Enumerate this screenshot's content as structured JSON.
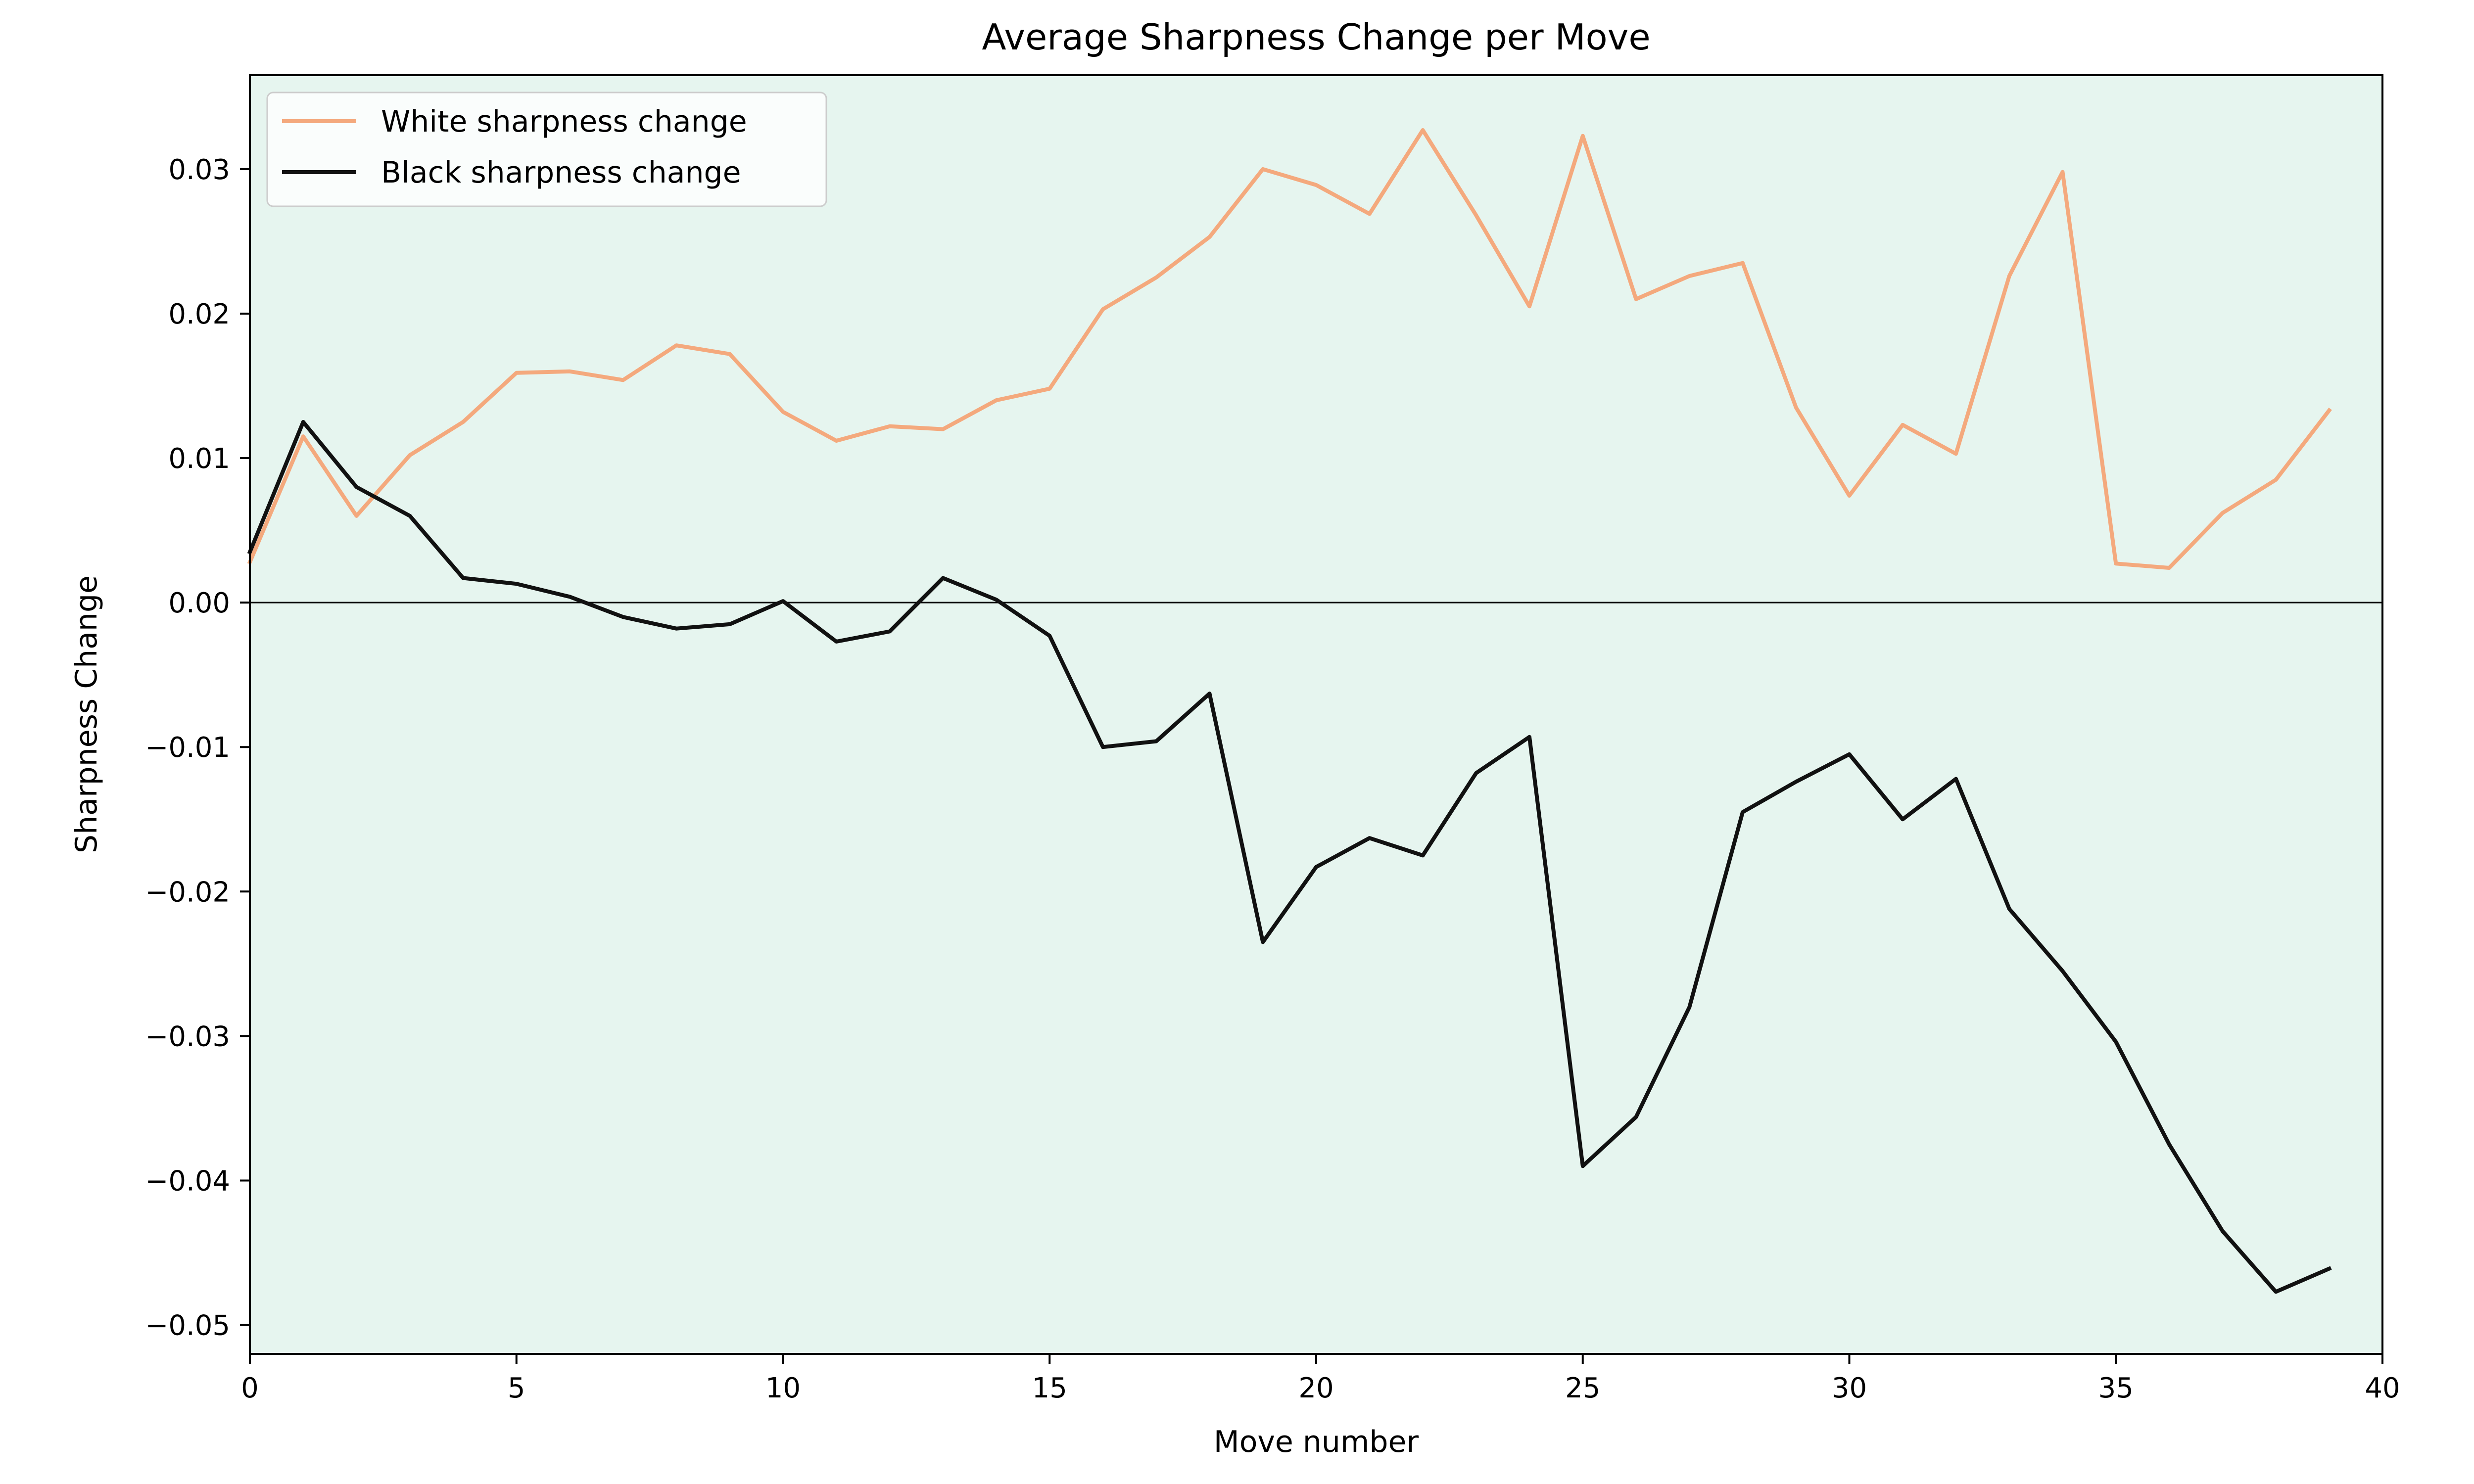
{
  "chart_data": {
    "type": "line",
    "title": "Average Sharpness Change per Move",
    "xlabel": "Move number",
    "ylabel": "Sharpness Change",
    "xlim": [
      0,
      40
    ],
    "ylim": [
      -0.052,
      0.0365
    ],
    "xticks": [
      0,
      5,
      10,
      15,
      20,
      25,
      30,
      35,
      40
    ],
    "yticks": [
      -0.05,
      -0.04,
      -0.03,
      -0.02,
      -0.01,
      0.0,
      0.01,
      0.02,
      0.03
    ],
    "ytick_labels": [
      "−0.05",
      "−0.04",
      "−0.03",
      "−0.02",
      "−0.01",
      "0.00",
      "0.01",
      "0.02",
      "0.03"
    ],
    "xtick_labels": [
      "0",
      "5",
      "10",
      "15",
      "20",
      "25",
      "30",
      "35",
      "40"
    ],
    "zero_line": true,
    "grid": false,
    "legend_position": "top-left",
    "background_color": "#e6f5ef",
    "x": [
      0,
      1,
      2,
      3,
      4,
      5,
      6,
      7,
      8,
      9,
      10,
      11,
      12,
      13,
      14,
      15,
      16,
      17,
      18,
      19,
      20,
      21,
      22,
      23,
      24,
      25,
      26,
      27,
      28,
      29,
      30,
      31,
      32,
      33,
      34,
      35,
      36,
      37,
      38,
      39
    ],
    "series": [
      {
        "name": "White sharpness change",
        "color": "#f4a97d",
        "values": [
          0.0028,
          0.0115,
          0.006,
          0.0102,
          0.0125,
          0.0159,
          0.016,
          0.0154,
          0.0178,
          0.0172,
          0.0132,
          0.0112,
          0.0122,
          0.012,
          0.014,
          0.0148,
          0.0203,
          0.0225,
          0.0253,
          0.03,
          0.0289,
          0.0269,
          0.0327,
          0.0268,
          0.0205,
          0.0323,
          0.021,
          0.0226,
          0.0235,
          0.0135,
          0.0074,
          0.0123,
          0.0103,
          0.0226,
          0.0298,
          0.0027,
          0.0024,
          0.0062,
          0.0085,
          0.0133
        ]
      },
      {
        "name": "Black sharpness change",
        "color": "#111111",
        "values": [
          0.0035,
          0.0125,
          0.008,
          0.006,
          0.0017,
          0.0013,
          0.0004,
          -0.001,
          -0.0018,
          -0.0015,
          0.0001,
          -0.0027,
          -0.002,
          0.0017,
          0.0002,
          -0.0023,
          -0.01,
          -0.0096,
          -0.0063,
          -0.0235,
          -0.0183,
          -0.0163,
          -0.0175,
          -0.0118,
          -0.0093,
          -0.039,
          -0.0356,
          -0.028,
          -0.0145,
          -0.0124,
          -0.0105,
          -0.015,
          -0.0122,
          -0.0212,
          -0.0255,
          -0.0304,
          -0.0375,
          -0.0435,
          -0.0477,
          -0.0461
        ]
      }
    ]
  }
}
